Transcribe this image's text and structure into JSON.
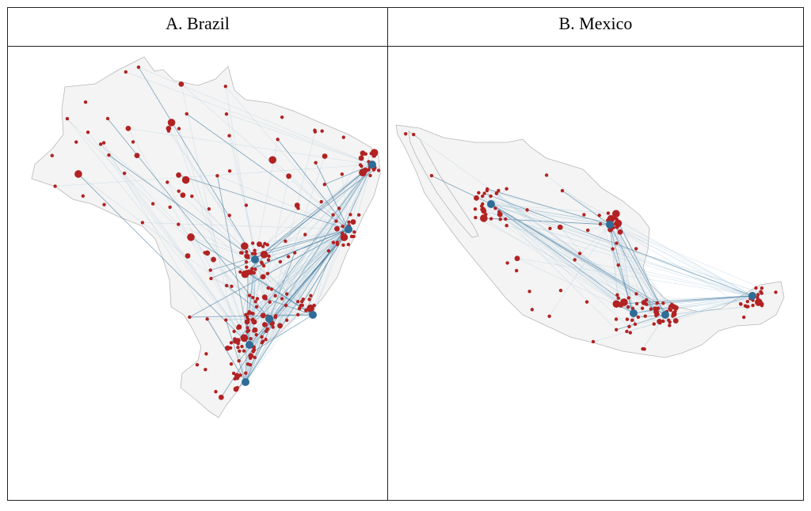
{
  "panels": [
    {
      "title": "A.  Brazil",
      "country": "Brazil"
    },
    {
      "title": "B.  Mexico",
      "country": "Mexico"
    }
  ],
  "colors": {
    "land": "#f4f4f4",
    "border": "#b8b8b8",
    "node": "#b22222",
    "flow": "#2f6d96",
    "flow_faint": "#a9c7da"
  },
  "legend_icons": [
    "node-circle-icon",
    "flow-arrow-icon"
  ]
}
